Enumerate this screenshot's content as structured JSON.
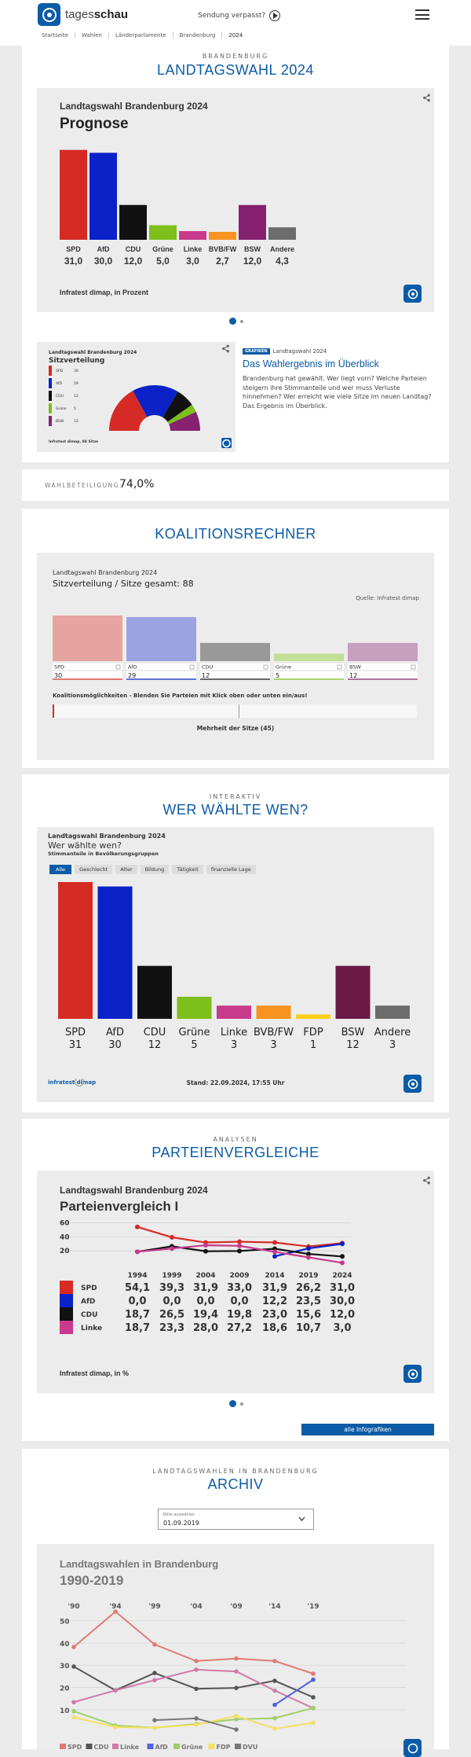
{
  "site": {
    "brand_light": "tages",
    "brand_bold": "schau",
    "sendung": "Sendung verpasst?"
  },
  "breadcrumb": [
    "Startseite",
    "Wahlen",
    "Länderparlamente",
    "Brandenburg",
    "2024"
  ],
  "header": {
    "kicker": "Brandenburg",
    "title": "LANDTAGSWAHL 2024"
  },
  "prognose": {
    "supertitle": "Landtagswahl Brandenburg 2024",
    "title": "Prognose",
    "source": "Infratest dimap, in Prozent"
  },
  "teaser": {
    "mini_super": "Landtagswahl Brandenburg 2024",
    "mini_title": "Sitzverteilung",
    "mini_source": "Infratest dimap, 88 Sitze",
    "badge": "GRAFIKEN",
    "kicker": "Landtagswahl 2024",
    "title": "Das Wahlergebnis im Überblick",
    "text": "Brandenburg hat gewählt. Wer liegt vorn? Welche Parteien steigern ihre Stimmanteile und wer muss Verluste hinnehmen? Wer erreicht wie viele Sitze im neuen Landtag? Das Ergebnis im Überblick.",
    "legend": [
      {
        "party": "SPD",
        "seats": "30"
      },
      {
        "party": "AfD",
        "seats": "29"
      },
      {
        "party": "CDU",
        "seats": "12"
      },
      {
        "party": "Grüne",
        "seats": "5"
      },
      {
        "party": "BSW",
        "seats": "12"
      }
    ]
  },
  "turnout": {
    "label": "Wahlbeteiligung:",
    "value": "74,0%"
  },
  "koalition": {
    "title": "KOALITIONSRECHNER",
    "supertitle": "Landtagswahl Brandenburg 2024",
    "subtitle": "Sitzverteilung / Sitze gesamt: 88",
    "source": "Quelle: Infratest dimap",
    "hint": "Koalitionsmöglichkeiten - Blenden Sie Parteien mit Klick oben oder unten ein/aus!",
    "majority": "Mehrheit der Sitze (45)"
  },
  "werwaehlte": {
    "kicker": "Interaktiv",
    "title": "WER WÄHLTE WEN?",
    "supertitle": "Landtagswahl Brandenburg 2024",
    "subtitle": "Wer wählte wen?",
    "subsub": "Stimmanteile in Bevölkerungsgruppen",
    "tabs": [
      "Alle",
      "Geschlecht",
      "Alter",
      "Bildung",
      "Tätigkeit",
      "finanzielle Lage"
    ],
    "source": "infratest dimap",
    "stand": "Stand: 22.09.2024, 17:55 Uhr"
  },
  "vergleich": {
    "kicker": "Analysen",
    "title": "PARTEIENVERGLEICHE",
    "supertitle": "Landtagswahl Brandenburg 2024",
    "chart_title": "Parteienvergleich I",
    "source": "Infratest dimap, in %",
    "button": "alle Infografiken"
  },
  "archiv": {
    "kicker": "Landtagswahlen in Brandenburg",
    "title": "ARCHIV",
    "select_label": "Bitte auswählen",
    "select_value": "01.09.2019",
    "supertitle": "Landtagswahlen in Brandenburg",
    "chart_title": "1990-2019",
    "legend": [
      "SPD",
      "CDU",
      "Linke",
      "AfD",
      "Grüne",
      "FDP",
      "DVU"
    ]
  },
  "colors": {
    "SPD": "#d62b25",
    "AfD": "#0a22c8",
    "CDU": "#111111",
    "Grüne": "#7dbf1b",
    "Linke": "#c83a8c",
    "BVB/FW": "#f7931e",
    "BSW": "#862170",
    "Andere": "#6d6d6d",
    "FDP": "#f7d11a",
    "DVU": "#8b6f4e",
    "accent": "#0c5ba6"
  },
  "chart_data": [
    {
      "type": "bar",
      "id": "prognose",
      "categories": [
        "SPD",
        "AfD",
        "CDU",
        "Grüne",
        "Linke",
        "BVB/FW",
        "BSW",
        "Andere"
      ],
      "values": [
        31.0,
        30.0,
        12.0,
        5.0,
        3.0,
        2.7,
        12.0,
        4.3
      ],
      "labels": [
        "31,0",
        "30,0",
        "12,0",
        "5,0",
        "3,0",
        "2,7",
        "12,0",
        "4,3"
      ],
      "ylim": [
        0,
        32
      ]
    },
    {
      "type": "bar",
      "id": "sitze",
      "categories": [
        "SPD",
        "AfD",
        "CDU",
        "Grüne",
        "BSW"
      ],
      "values": [
        30,
        29,
        12,
        5,
        12
      ],
      "ylim": [
        0,
        30
      ]
    },
    {
      "type": "bar",
      "id": "werwaehlte",
      "categories": [
        "SPD",
        "AfD",
        "CDU",
        "Grüne",
        "Linke",
        "BVB/FW",
        "FDP",
        "BSW",
        "Andere"
      ],
      "values": [
        31,
        30,
        12,
        5,
        3,
        3,
        1,
        12,
        3
      ],
      "ylim": [
        0,
        30
      ]
    },
    {
      "type": "line",
      "id": "vergleich",
      "x": [
        "1994",
        "1999",
        "2004",
        "2009",
        "2014",
        "2019",
        "2024"
      ],
      "yticks": [
        20,
        40,
        60
      ],
      "ylim": [
        0,
        65
      ],
      "series": [
        {
          "name": "SPD",
          "values": [
            54.1,
            39.3,
            31.9,
            33.0,
            31.9,
            26.2,
            31.0
          ],
          "labels": [
            "54,1",
            "39,3",
            "31,9",
            "33,0",
            "31,9",
            "26,2",
            "31,0"
          ]
        },
        {
          "name": "AfD",
          "values": [
            null,
            null,
            null,
            null,
            12.2,
            23.5,
            30.0
          ],
          "labels": [
            "0,0",
            "0,0",
            "0,0",
            "0,0",
            "12,2",
            "23,5",
            "30,0"
          ]
        },
        {
          "name": "CDU",
          "values": [
            18.7,
            26.5,
            19.4,
            19.8,
            23.0,
            15.6,
            12.0
          ],
          "labels": [
            "18,7",
            "26,5",
            "19,4",
            "19,8",
            "23,0",
            "15,6",
            "12,0"
          ]
        },
        {
          "name": "Linke",
          "values": [
            18.7,
            23.3,
            28.0,
            27.2,
            18.6,
            10.7,
            3.0
          ],
          "labels": [
            "18,7",
            "23,3",
            "28,0",
            "27,2",
            "18,6",
            "10,7",
            "3,0"
          ]
        }
      ]
    },
    {
      "type": "line",
      "id": "archiv",
      "x": [
        "'90",
        "'94",
        "'99",
        "'04",
        "'09",
        "'14",
        "'19"
      ],
      "yticks": [
        10,
        20,
        30,
        40,
        50
      ],
      "ylim": [
        5,
        58
      ],
      "series": [
        {
          "name": "SPD",
          "values": [
            38.2,
            54.1,
            39.3,
            31.9,
            33.0,
            31.9,
            26.2
          ]
        },
        {
          "name": "CDU",
          "values": [
            29.4,
            18.7,
            26.5,
            19.4,
            19.8,
            23.0,
            15.6
          ]
        },
        {
          "name": "Linke",
          "values": [
            13.4,
            18.7,
            23.3,
            28.0,
            27.2,
            18.6,
            10.7
          ]
        },
        {
          "name": "AfD",
          "values": [
            null,
            null,
            null,
            null,
            null,
            12.2,
            23.5
          ]
        },
        {
          "name": "Grüne",
          "values": [
            9.3,
            2.9,
            1.9,
            3.6,
            5.7,
            6.2,
            10.8
          ]
        },
        {
          "name": "FDP",
          "values": [
            6.6,
            2.2,
            1.9,
            3.3,
            7.2,
            1.5,
            4.1
          ]
        },
        {
          "name": "DVU",
          "values": [
            null,
            null,
            5.3,
            6.1,
            1.1,
            null,
            null
          ]
        }
      ]
    }
  ]
}
